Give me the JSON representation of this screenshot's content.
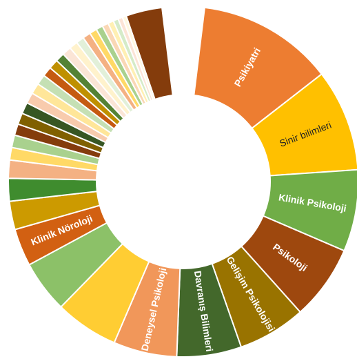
{
  "chart_data": {
    "type": "pie",
    "donut": true,
    "labels": [
      "Psikiyatri",
      "Sinir bilimleri",
      "Klinik Psikoloji",
      "Psikoloji",
      "Gelişim Psikolojisi",
      "Davranış Bilimleri",
      "Deneysel Psikoloji",
      "",
      "",
      "Klinik Nöroloji",
      "",
      "",
      "",
      "",
      "",
      "",
      "",
      "",
      "",
      "",
      "",
      "",
      "",
      "",
      "",
      "",
      "",
      "",
      "",
      "",
      "",
      "",
      "",
      "",
      "",
      ""
    ],
    "values": [
      12.0,
      9.0,
      7.2,
      6.6,
      6.0,
      5.7,
      5.6,
      5.6,
      4.6,
      3.3,
      2.5,
      2.0,
      1.6,
      1.1,
      1.1,
      1.0,
      1.0,
      1.0,
      0.95,
      0.95,
      0.9,
      0.85,
      0.85,
      0.8,
      0.8,
      0.75,
      0.7,
      0.7,
      0.65,
      0.6,
      0.55,
      0.5,
      0.45,
      0.4,
      0.35,
      3.2
    ],
    "colors": [
      "#ED7D31",
      "#FFC000",
      "#70AD47",
      "#9E480E",
      "#997300",
      "#43682B",
      "#F1975A",
      "#FFCD33",
      "#8CC168",
      "#D26012",
      "#CC9A00",
      "#3F8C2E",
      "#F4B183",
      "#FFD966",
      "#A9D18E",
      "#843C0C",
      "#806000",
      "#375623",
      "#F8CBAD",
      "#FFE699",
      "#C5E0B4",
      "#C55A11",
      "#BF9000",
      "#548235",
      "#FBE5D6",
      "#FFF2CC",
      "#E2F0D9",
      "#F4B183",
      "#FFD966",
      "#A9D18E",
      "#FAD7B5",
      "#FFF0B3",
      "#D5EBC8",
      "#FCE4D6",
      "#FFF8E1",
      "#843C0C"
    ],
    "gap_degrees": 14,
    "dark_label_slices": [
      1
    ]
  }
}
